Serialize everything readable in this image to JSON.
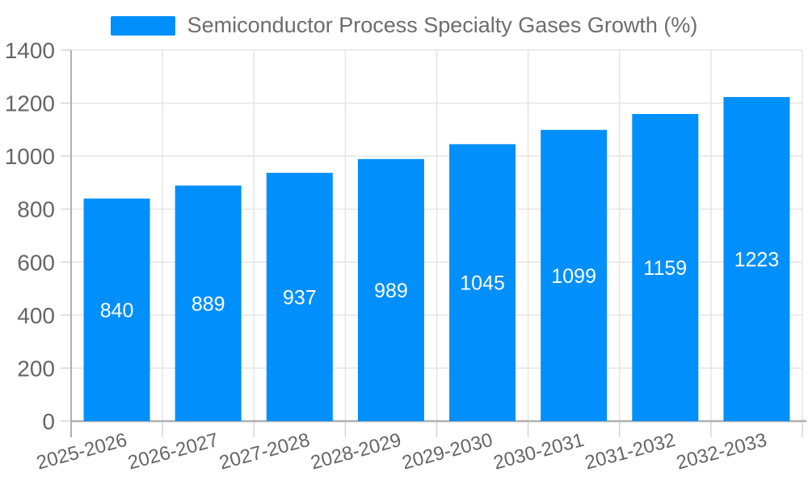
{
  "legend": {
    "label": "Semiconductor Process Specialty Gases Growth (%)"
  },
  "colors": {
    "bar": "#008FFB",
    "grid": "#e5e5e5",
    "axis_line": "#b0b0b0",
    "tick": "#d6d6d6",
    "axis_label": "#666666",
    "value_label": "#ffffff",
    "legend_text": "#6d6d6d",
    "background": "#ffffff"
  },
  "chart_data": {
    "type": "bar",
    "title": "Semiconductor Process Specialty Gases Growth (%)",
    "categories": [
      "2025-2026",
      "2026-2027",
      "2027-2028",
      "2028-2029",
      "2029-2030",
      "2030-2031",
      "2031-2032",
      "2032-2033"
    ],
    "values": [
      840,
      889,
      937,
      989,
      1045,
      1099,
      1159,
      1223
    ],
    "xlabel": "",
    "ylabel": "",
    "ylim": [
      0,
      1400
    ],
    "yticks": [
      0,
      200,
      400,
      600,
      800,
      1000,
      1200,
      1400
    ],
    "grid": "both",
    "legend_position": "top",
    "value_label_position": "inside-middle",
    "xtick_rotation": -15
  }
}
